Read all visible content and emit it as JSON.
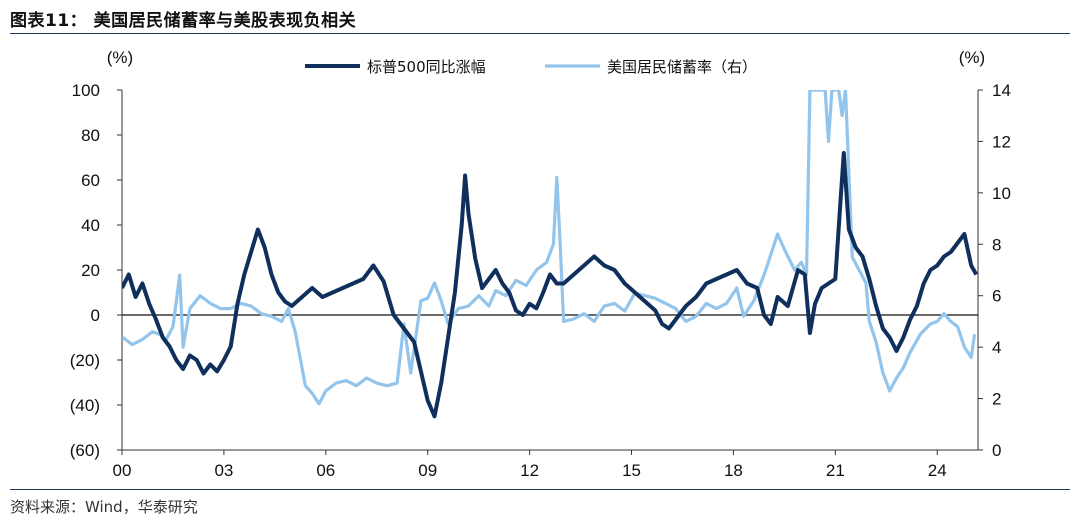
{
  "figure_title": "图表11：  美国居民储蓄率与美股表现负相关",
  "source": "资料来源：Wind，华泰研究",
  "colors": {
    "sp500": "#0f2f5c",
    "saving_rate": "#93c5ec",
    "rule": "#1f3a5f",
    "zero_line": "#111111"
  },
  "chart_data": {
    "type": "line",
    "title": "",
    "xlabel": "",
    "ylabel_left": "(%)",
    "ylabel_right": "(%)",
    "x_tick_labels": [
      "00",
      "03",
      "06",
      "09",
      "12",
      "15",
      "18",
      "21",
      "24"
    ],
    "x_tick_years": [
      2000,
      2003,
      2006,
      2009,
      2012,
      2015,
      2018,
      2021,
      2024
    ],
    "x_range": [
      2000,
      2025.2
    ],
    "y_left_range": [
      -60,
      100
    ],
    "y_left_ticks": [
      -60,
      -40,
      -20,
      0,
      20,
      40,
      60,
      80,
      100
    ],
    "y_left_tick_labels": [
      "(60)",
      "(40)",
      "(20)",
      "0",
      "20",
      "40",
      "60",
      "80",
      "100"
    ],
    "y_right_range": [
      0,
      14
    ],
    "y_right_ticks": [
      0,
      2,
      4,
      6,
      8,
      10,
      12,
      14
    ],
    "y_right_tick_labels": [
      "0",
      "2",
      "4",
      "6",
      "8",
      "10",
      "12",
      "14"
    ],
    "legend_position": "top-center",
    "grid": false,
    "series": [
      {
        "name": "标普500同比涨幅",
        "axis": "left",
        "points": [
          [
            2000.0,
            12
          ],
          [
            2000.2,
            18
          ],
          [
            2000.4,
            8
          ],
          [
            2000.6,
            14
          ],
          [
            2000.8,
            5
          ],
          [
            2001.0,
            -2
          ],
          [
            2001.2,
            -10
          ],
          [
            2001.4,
            -14
          ],
          [
            2001.6,
            -20
          ],
          [
            2001.8,
            -24
          ],
          [
            2002.0,
            -18
          ],
          [
            2002.2,
            -20
          ],
          [
            2002.4,
            -26
          ],
          [
            2002.6,
            -22
          ],
          [
            2002.8,
            -25
          ],
          [
            2003.0,
            -20
          ],
          [
            2003.2,
            -14
          ],
          [
            2003.4,
            5
          ],
          [
            2003.6,
            18
          ],
          [
            2003.8,
            28
          ],
          [
            2004.0,
            38
          ],
          [
            2004.2,
            30
          ],
          [
            2004.4,
            18
          ],
          [
            2004.6,
            10
          ],
          [
            2004.8,
            6
          ],
          [
            2005.0,
            4
          ],
          [
            2005.3,
            8
          ],
          [
            2005.6,
            12
          ],
          [
            2005.9,
            8
          ],
          [
            2006.2,
            10
          ],
          [
            2006.5,
            12
          ],
          [
            2006.8,
            14
          ],
          [
            2007.1,
            16
          ],
          [
            2007.4,
            22
          ],
          [
            2007.7,
            15
          ],
          [
            2008.0,
            0
          ],
          [
            2008.3,
            -6
          ],
          [
            2008.6,
            -12
          ],
          [
            2008.8,
            -25
          ],
          [
            2009.0,
            -38
          ],
          [
            2009.2,
            -45
          ],
          [
            2009.4,
            -30
          ],
          [
            2009.6,
            -10
          ],
          [
            2009.8,
            10
          ],
          [
            2010.0,
            40
          ],
          [
            2010.1,
            62
          ],
          [
            2010.2,
            45
          ],
          [
            2010.4,
            25
          ],
          [
            2010.6,
            12
          ],
          [
            2010.8,
            16
          ],
          [
            2011.0,
            20
          ],
          [
            2011.2,
            14
          ],
          [
            2011.4,
            10
          ],
          [
            2011.6,
            2
          ],
          [
            2011.8,
            0
          ],
          [
            2012.0,
            5
          ],
          [
            2012.2,
            3
          ],
          [
            2012.4,
            10
          ],
          [
            2012.6,
            18
          ],
          [
            2012.8,
            14
          ],
          [
            2013.0,
            14
          ],
          [
            2013.3,
            18
          ],
          [
            2013.6,
            22
          ],
          [
            2013.9,
            26
          ],
          [
            2014.2,
            22
          ],
          [
            2014.5,
            20
          ],
          [
            2014.8,
            14
          ],
          [
            2015.1,
            10
          ],
          [
            2015.4,
            6
          ],
          [
            2015.7,
            2
          ],
          [
            2015.9,
            -4
          ],
          [
            2016.1,
            -6
          ],
          [
            2016.3,
            -2
          ],
          [
            2016.6,
            4
          ],
          [
            2016.9,
            8
          ],
          [
            2017.2,
            14
          ],
          [
            2017.5,
            16
          ],
          [
            2017.8,
            18
          ],
          [
            2018.1,
            20
          ],
          [
            2018.4,
            14
          ],
          [
            2018.7,
            12
          ],
          [
            2018.9,
            0
          ],
          [
            2019.1,
            -4
          ],
          [
            2019.3,
            8
          ],
          [
            2019.6,
            4
          ],
          [
            2019.9,
            20
          ],
          [
            2020.1,
            18
          ],
          [
            2020.25,
            -8
          ],
          [
            2020.4,
            5
          ],
          [
            2020.6,
            12
          ],
          [
            2020.8,
            14
          ],
          [
            2021.0,
            16
          ],
          [
            2021.15,
            50
          ],
          [
            2021.25,
            72
          ],
          [
            2021.4,
            38
          ],
          [
            2021.6,
            30
          ],
          [
            2021.8,
            26
          ],
          [
            2022.0,
            16
          ],
          [
            2022.2,
            4
          ],
          [
            2022.4,
            -6
          ],
          [
            2022.6,
            -10
          ],
          [
            2022.8,
            -16
          ],
          [
            2023.0,
            -10
          ],
          [
            2023.2,
            -2
          ],
          [
            2023.4,
            4
          ],
          [
            2023.6,
            14
          ],
          [
            2023.8,
            20
          ],
          [
            2024.0,
            22
          ],
          [
            2024.2,
            26
          ],
          [
            2024.4,
            28
          ],
          [
            2024.6,
            32
          ],
          [
            2024.8,
            36
          ],
          [
            2025.0,
            22
          ],
          [
            2025.15,
            18
          ]
        ]
      },
      {
        "name": "美国居民储蓄率（右）",
        "axis": "right",
        "points": [
          [
            2000.0,
            4.4
          ],
          [
            2000.3,
            4.1
          ],
          [
            2000.6,
            4.3
          ],
          [
            2000.9,
            4.6
          ],
          [
            2001.1,
            4.5
          ],
          [
            2001.3,
            4.3
          ],
          [
            2001.5,
            4.8
          ],
          [
            2001.7,
            6.8
          ],
          [
            2001.8,
            4.0
          ],
          [
            2002.0,
            5.5
          ],
          [
            2002.3,
            6.0
          ],
          [
            2002.6,
            5.7
          ],
          [
            2002.9,
            5.5
          ],
          [
            2003.2,
            5.5
          ],
          [
            2003.5,
            5.7
          ],
          [
            2003.8,
            5.6
          ],
          [
            2004.1,
            5.3
          ],
          [
            2004.4,
            5.2
          ],
          [
            2004.7,
            5.0
          ],
          [
            2004.9,
            5.5
          ],
          [
            2005.1,
            4.6
          ],
          [
            2005.4,
            2.5
          ],
          [
            2005.6,
            2.2
          ],
          [
            2005.8,
            1.8
          ],
          [
            2006.0,
            2.3
          ],
          [
            2006.3,
            2.6
          ],
          [
            2006.6,
            2.7
          ],
          [
            2006.9,
            2.5
          ],
          [
            2007.2,
            2.8
          ],
          [
            2007.5,
            2.6
          ],
          [
            2007.8,
            2.5
          ],
          [
            2008.1,
            2.6
          ],
          [
            2008.3,
            4.9
          ],
          [
            2008.5,
            3.0
          ],
          [
            2008.8,
            5.8
          ],
          [
            2009.0,
            5.9
          ],
          [
            2009.2,
            6.5
          ],
          [
            2009.4,
            5.8
          ],
          [
            2009.6,
            4.9
          ],
          [
            2009.9,
            5.5
          ],
          [
            2010.2,
            5.6
          ],
          [
            2010.5,
            6.0
          ],
          [
            2010.8,
            5.6
          ],
          [
            2011.0,
            6.2
          ],
          [
            2011.3,
            6.0
          ],
          [
            2011.6,
            6.6
          ],
          [
            2011.9,
            6.4
          ],
          [
            2012.2,
            7.0
          ],
          [
            2012.5,
            7.3
          ],
          [
            2012.7,
            8.0
          ],
          [
            2012.8,
            10.6
          ],
          [
            2012.9,
            8.0
          ],
          [
            2013.0,
            5.0
          ],
          [
            2013.3,
            5.1
          ],
          [
            2013.6,
            5.3
          ],
          [
            2013.9,
            5.0
          ],
          [
            2014.2,
            5.6
          ],
          [
            2014.5,
            5.7
          ],
          [
            2014.8,
            5.4
          ],
          [
            2015.1,
            6.1
          ],
          [
            2015.4,
            6.0
          ],
          [
            2015.7,
            5.9
          ],
          [
            2016.0,
            5.7
          ],
          [
            2016.3,
            5.5
          ],
          [
            2016.6,
            5.0
          ],
          [
            2016.9,
            5.2
          ],
          [
            2017.2,
            5.7
          ],
          [
            2017.5,
            5.5
          ],
          [
            2017.8,
            5.7
          ],
          [
            2018.1,
            6.3
          ],
          [
            2018.3,
            5.2
          ],
          [
            2018.6,
            5.8
          ],
          [
            2018.9,
            6.8
          ],
          [
            2019.1,
            7.6
          ],
          [
            2019.3,
            8.4
          ],
          [
            2019.5,
            7.8
          ],
          [
            2019.8,
            7.0
          ],
          [
            2020.0,
            7.3
          ],
          [
            2020.15,
            6.8
          ],
          [
            2020.25,
            14.0
          ],
          [
            2020.7,
            14.0
          ],
          [
            2020.8,
            12.0
          ],
          [
            2020.9,
            14.0
          ],
          [
            2021.1,
            14.0
          ],
          [
            2021.2,
            13.0
          ],
          [
            2021.3,
            14.0
          ],
          [
            2021.5,
            7.5
          ],
          [
            2021.7,
            7.0
          ],
          [
            2021.9,
            6.5
          ],
          [
            2022.0,
            5.0
          ],
          [
            2022.2,
            4.2
          ],
          [
            2022.4,
            3.0
          ],
          [
            2022.6,
            2.3
          ],
          [
            2022.8,
            2.8
          ],
          [
            2023.0,
            3.2
          ],
          [
            2023.2,
            3.8
          ],
          [
            2023.5,
            4.5
          ],
          [
            2023.8,
            4.9
          ],
          [
            2024.0,
            5.0
          ],
          [
            2024.2,
            5.3
          ],
          [
            2024.4,
            5.0
          ],
          [
            2024.6,
            4.8
          ],
          [
            2024.8,
            4.0
          ],
          [
            2025.0,
            3.6
          ],
          [
            2025.1,
            4.5
          ]
        ]
      }
    ]
  }
}
